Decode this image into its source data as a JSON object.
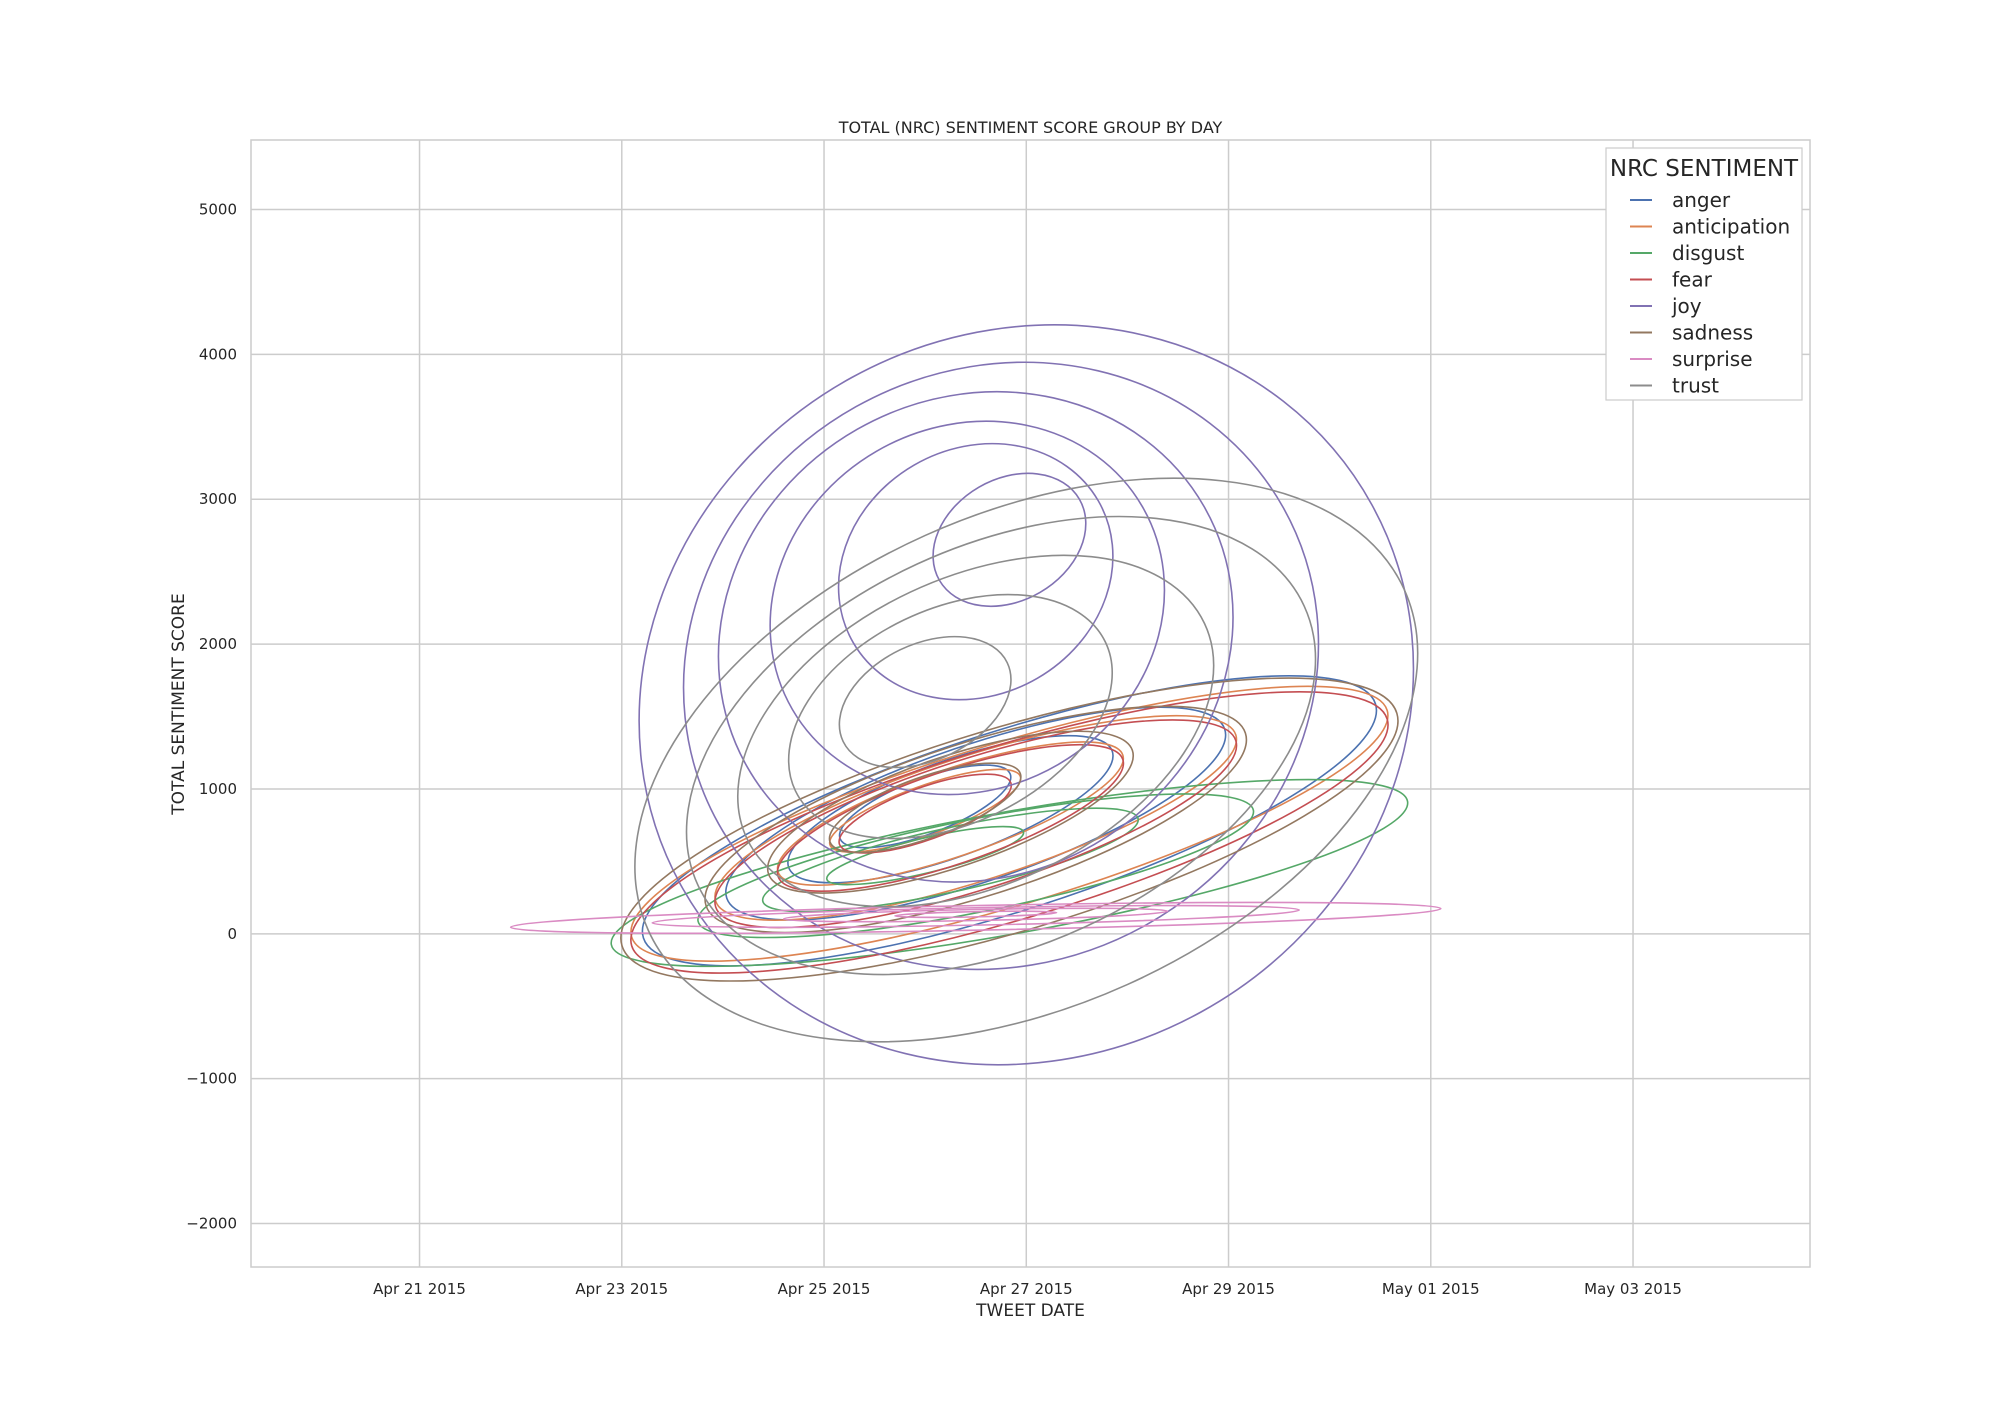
{
  "chart_data": {
    "type": "contour",
    "title": "TOTAL (NRC) SENTIMENT SCORE GROUP BY DAY",
    "xlabel": "TWEET DATE",
    "ylabel": "TOTAL SENTIMENT SCORE",
    "xlim": [
      "2015-04-19T08:00",
      "2015-05-04T18:00"
    ],
    "ylim": [
      -2300,
      5480
    ],
    "x_ticks": [
      "2015-04-21",
      "2015-04-23",
      "2015-04-25",
      "2015-04-27",
      "2015-04-29",
      "2015-05-01",
      "2015-05-03"
    ],
    "x_tick_labels": [
      "Apr 21 2015",
      "Apr 23 2015",
      "Apr 25 2015",
      "Apr 27 2015",
      "Apr 29 2015",
      "May 01 2015",
      "May 03 2015"
    ],
    "y_ticks": [
      -2000,
      -1000,
      0,
      1000,
      2000,
      3000,
      4000,
      5000
    ],
    "y_tick_labels": [
      "−2000",
      "−1000",
      "0",
      "1000",
      "2000",
      "3000",
      "4000",
      "5000"
    ],
    "grid": true,
    "legend": {
      "title": "NRC SENTIMENT",
      "placement": "top-right"
    },
    "series": [
      {
        "name": "anger",
        "color": "#4c72b0",
        "levels": 8,
        "contours": [
          {
            "center": [
              "2015-04-26T20:00",
              780
            ],
            "rx_days": 3.8,
            "ry": 620,
            "tilt": -0.32
          },
          {
            "center": [
              "2015-04-26T12:00",
              830
            ],
            "rx_days": 2.6,
            "ry": 470,
            "tilt": -0.34
          },
          {
            "center": [
              "2015-04-26T06:00",
              860
            ],
            "rx_days": 1.7,
            "ry": 330,
            "tilt": -0.36
          },
          {
            "center": [
              "2015-04-26T00:00",
              880
            ],
            "rx_days": 0.9,
            "ry": 190,
            "tilt": -0.38
          }
        ]
      },
      {
        "name": "anticipation",
        "color": "#dd8452",
        "levels": 8,
        "contours": [
          {
            "center": [
              "2015-04-26T20:00",
              760
            ],
            "rx_days": 3.9,
            "ry": 560,
            "tilt": -0.3
          },
          {
            "center": [
              "2015-04-26T12:00",
              800
            ],
            "rx_days": 2.7,
            "ry": 430,
            "tilt": -0.32
          },
          {
            "center": [
              "2015-04-26T06:00",
              830
            ],
            "rx_days": 1.8,
            "ry": 300,
            "tilt": -0.34
          },
          {
            "center": [
              "2015-04-26T00:00",
              850
            ],
            "rx_days": 1.0,
            "ry": 170,
            "tilt": -0.36
          }
        ]
      },
      {
        "name": "disgust",
        "color": "#55a868",
        "levels": 8,
        "contours": [
          {
            "center": [
              "2015-04-26T20:00",
              420
            ],
            "rx_days": 4.0,
            "ry": 420,
            "tilt": -0.18
          },
          {
            "center": [
              "2015-04-26T12:00",
              470
            ],
            "rx_days": 2.8,
            "ry": 320,
            "tilt": -0.2
          },
          {
            "center": [
              "2015-04-26T06:00",
              510
            ],
            "rx_days": 1.9,
            "ry": 220,
            "tilt": -0.22
          },
          {
            "center": [
              "2015-04-26T00:00",
              540
            ],
            "rx_days": 1.0,
            "ry": 120,
            "tilt": -0.24
          }
        ]
      },
      {
        "name": "fear",
        "color": "#c44e52",
        "levels": 8,
        "contours": [
          {
            "center": [
              "2015-04-26T20:00",
              700
            ],
            "rx_days": 3.9,
            "ry": 600,
            "tilt": -0.3
          },
          {
            "center": [
              "2015-04-26T12:00",
              760
            ],
            "rx_days": 2.7,
            "ry": 450,
            "tilt": -0.32
          },
          {
            "center": [
              "2015-04-26T06:00",
              800
            ],
            "rx_days": 1.8,
            "ry": 320,
            "tilt": -0.34
          },
          {
            "center": [
              "2015-04-26T00:00",
              830
            ],
            "rx_days": 0.9,
            "ry": 180,
            "tilt": -0.36
          }
        ]
      },
      {
        "name": "joy",
        "color": "#8172b3",
        "levels": 10,
        "contours": [
          {
            "center": [
              "2015-04-27T00:00",
              1650
            ],
            "rx_days": 3.9,
            "ry": 2500,
            "tilt": -0.55
          },
          {
            "center": [
              "2015-04-26T18:00",
              1850
            ],
            "rx_days": 3.2,
            "ry": 2050,
            "tilt": -0.56
          },
          {
            "center": [
              "2015-04-26T12:00",
              2050
            ],
            "rx_days": 2.6,
            "ry": 1650,
            "tilt": -0.57
          },
          {
            "center": [
              "2015-04-26T10:00",
              2250
            ],
            "rx_days": 2.0,
            "ry": 1250,
            "tilt": -0.58
          },
          {
            "center": [
              "2015-04-26T12:00",
              2500
            ],
            "rx_days": 1.4,
            "ry": 850,
            "tilt": -0.58
          },
          {
            "center": [
              "2015-04-26T20:00",
              2720
            ],
            "rx_days": 0.8,
            "ry": 420,
            "tilt": -0.58
          }
        ]
      },
      {
        "name": "sadness",
        "color": "#937860",
        "levels": 8,
        "contours": [
          {
            "center": [
              "2015-04-26T20:00",
              720
            ],
            "rx_days": 4.0,
            "ry": 700,
            "tilt": -0.3
          },
          {
            "center": [
              "2015-04-26T12:00",
              790
            ],
            "rx_days": 2.8,
            "ry": 530,
            "tilt": -0.32
          },
          {
            "center": [
              "2015-04-26T06:00",
              840
            ],
            "rx_days": 1.9,
            "ry": 380,
            "tilt": -0.34
          },
          {
            "center": [
              "2015-04-26T00:00",
              870
            ],
            "rx_days": 1.0,
            "ry": 210,
            "tilt": -0.36
          }
        ]
      },
      {
        "name": "surprise",
        "color": "#da8bc3",
        "levels": 6,
        "contours": [
          {
            "center": [
              "2015-04-26T12:00",
              110
            ],
            "rx_days": 4.6,
            "ry": 85,
            "tilt": -0.02
          },
          {
            "center": [
              "2015-04-26T12:00",
              120
            ],
            "rx_days": 3.2,
            "ry": 60,
            "tilt": -0.02
          },
          {
            "center": [
              "2015-04-26T12:00",
              130
            ],
            "rx_days": 1.9,
            "ry": 38,
            "tilt": -0.02
          },
          {
            "center": [
              "2015-04-26T12:00",
              135
            ],
            "rx_days": 0.8,
            "ry": 18,
            "tilt": -0.02
          }
        ]
      },
      {
        "name": "trust",
        "color": "#8c8c8c",
        "levels": 9,
        "contours": [
          {
            "center": [
              "2015-04-27T00:00",
              1200
            ],
            "rx_days": 4.1,
            "ry": 1700,
            "tilt": -0.45
          },
          {
            "center": [
              "2015-04-26T18:00",
              1300
            ],
            "rx_days": 3.3,
            "ry": 1380,
            "tilt": -0.46
          },
          {
            "center": [
              "2015-04-26T12:00",
              1400
            ],
            "rx_days": 2.5,
            "ry": 1060,
            "tilt": -0.47
          },
          {
            "center": [
              "2015-04-26T06:00",
              1500
            ],
            "rx_days": 1.7,
            "ry": 740,
            "tilt": -0.48
          },
          {
            "center": [
              "2015-04-26T00:00",
              1600
            ],
            "rx_days": 0.9,
            "ry": 400,
            "tilt": -0.48
          }
        ]
      }
    ]
  }
}
